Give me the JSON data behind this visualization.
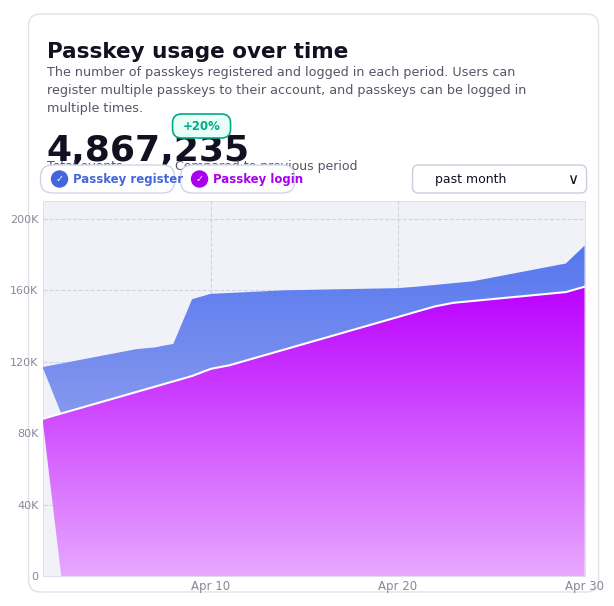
{
  "title": "Passkey usage over time",
  "subtitle": "The number of passkeys registered and logged in each period. Users can\nregister multiple passkeys to their account, and passkeys can be logged in\nmultiple times.",
  "big_number": "4,867,235",
  "big_number_label": "Total events",
  "badge_text": "+20%",
  "badge_label": "Compared to previous period",
  "legend_1": "Passkey register",
  "legend_2": "Passkey login",
  "dropdown_text": "past month",
  "x_labels": [
    "Apr 10",
    "Apr 20",
    "Apr 30"
  ],
  "y_ticks": [
    0,
    40000,
    80000,
    120000,
    160000,
    200000
  ],
  "y_labels": [
    "0",
    "40K",
    "80K",
    "120K",
    "160K",
    "200K"
  ],
  "ylim": [
    0,
    210000
  ],
  "x_days": [
    1,
    2,
    3,
    4,
    5,
    6,
    7,
    8,
    9,
    10,
    11,
    12,
    13,
    14,
    15,
    16,
    17,
    18,
    19,
    20,
    21,
    22,
    23,
    24,
    25,
    26,
    27,
    28,
    29,
    30
  ],
  "register_values": [
    117000,
    119000,
    121000,
    123000,
    125000,
    127000,
    128000,
    130000,
    155000,
    158000,
    158500,
    159000,
    159500,
    160000,
    160200,
    160400,
    160600,
    160800,
    161000,
    161200,
    162000,
    163000,
    164000,
    165000,
    167000,
    169000,
    171000,
    173000,
    175000,
    185000
  ],
  "login_values": [
    88000,
    91000,
    94000,
    97000,
    100000,
    103000,
    106000,
    109000,
    112000,
    116000,
    118000,
    121000,
    124000,
    127000,
    130000,
    133000,
    136000,
    139000,
    142000,
    145000,
    148000,
    151000,
    153000,
    154000,
    155000,
    156000,
    157000,
    158000,
    159000,
    162000
  ],
  "bg_color": "#ffffff",
  "chart_bg": "#f0f2f8",
  "register_color_top": "#7090e8",
  "register_color_bottom": "#a0b8f8",
  "login_color_top": "#cc00ff",
  "login_color_bottom": "#e080ff",
  "grid_color": "#c8cce0",
  "tick_color": "#888899",
  "title_color": "#111122",
  "subtitle_color": "#555566",
  "badge_color": "#00aa88",
  "badge_bg": "#e8fff8",
  "badge_border": "#00aa88",
  "legend1_color": "#4466dd",
  "legend2_color": "#aa00ee",
  "dropdown_border": "#ccccdd"
}
